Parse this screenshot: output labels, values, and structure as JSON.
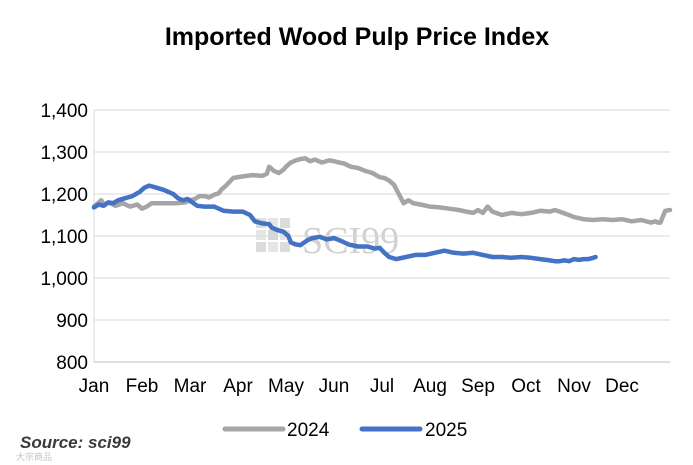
{
  "chart_data": {
    "type": "line",
    "title": "Imported Wood Pulp Price Index",
    "xlabel": "",
    "ylabel": "",
    "ylim": [
      800,
      1400
    ],
    "yticks": [
      "800",
      "900",
      "1,000",
      "1,100",
      "1,200",
      "1,300",
      "1,400"
    ],
    "ytick_values": [
      800,
      900,
      1000,
      1100,
      1200,
      1300,
      1400
    ],
    "xlim": [
      0,
      12
    ],
    "months": [
      "Jan",
      "Feb",
      "Mar",
      "Apr",
      "May",
      "Jun",
      "Jul",
      "Aug",
      "Sep",
      "Oct",
      "Nov",
      "Dec"
    ],
    "grid": true,
    "legend_position": "bottom",
    "source": "Source: sci99",
    "watermark": "SCI99",
    "series": [
      {
        "name": "2024",
        "color": "#a5a5a5",
        "x": [
          0,
          0.1,
          0.15,
          0.2,
          0.3,
          0.45,
          0.6,
          0.75,
          0.9,
          1.0,
          1.1,
          1.2,
          1.3,
          1.5,
          1.7,
          1.9,
          2.0,
          2.1,
          2.2,
          2.3,
          2.4,
          2.5,
          2.6,
          2.65,
          2.75,
          2.9,
          3.1,
          3.3,
          3.5,
          3.6,
          3.65,
          3.75,
          3.85,
          3.95,
          4.0,
          4.1,
          4.2,
          4.3,
          4.4,
          4.5,
          4.6,
          4.75,
          4.9,
          5.0,
          5.1,
          5.2,
          5.35,
          5.5,
          5.65,
          5.8,
          5.95,
          6.05,
          6.15,
          6.25,
          6.35,
          6.45,
          6.55,
          6.65,
          6.8,
          7.0,
          7.2,
          7.4,
          7.6,
          7.75,
          7.9,
          8.0,
          8.1,
          8.2,
          8.3,
          8.5,
          8.7,
          8.9,
          9.1,
          9.3,
          9.5,
          9.6,
          9.7,
          9.85,
          10.0,
          10.2,
          10.4,
          10.6,
          10.8,
          11.0,
          11.2,
          11.4,
          11.6,
          11.7,
          11.75,
          11.8,
          11.9,
          12.0
        ],
        "values": [
          1170,
          1180,
          1185,
          1175,
          1180,
          1172,
          1178,
          1170,
          1175,
          1165,
          1170,
          1178,
          1178,
          1178,
          1178,
          1180,
          1185,
          1188,
          1195,
          1195,
          1192,
          1198,
          1202,
          1210,
          1220,
          1238,
          1242,
          1245,
          1243,
          1248,
          1265,
          1255,
          1250,
          1258,
          1265,
          1275,
          1280,
          1283,
          1285,
          1278,
          1282,
          1275,
          1280,
          1278,
          1275,
          1273,
          1265,
          1262,
          1255,
          1250,
          1240,
          1238,
          1232,
          1222,
          1200,
          1178,
          1185,
          1178,
          1175,
          1170,
          1168,
          1165,
          1162,
          1158,
          1155,
          1162,
          1155,
          1170,
          1158,
          1150,
          1155,
          1152,
          1155,
          1160,
          1158,
          1162,
          1158,
          1152,
          1145,
          1140,
          1138,
          1140,
          1138,
          1140,
          1135,
          1138,
          1132,
          1135,
          1132,
          1132,
          1160,
          1162
        ]
      },
      {
        "name": "2025",
        "color": "#4472c4",
        "x": [
          0,
          0.1,
          0.2,
          0.3,
          0.4,
          0.5,
          0.65,
          0.8,
          0.95,
          1.05,
          1.15,
          1.3,
          1.45,
          1.55,
          1.65,
          1.75,
          1.85,
          1.95,
          2.05,
          2.15,
          2.3,
          2.5,
          2.7,
          2.9,
          3.1,
          3.25,
          3.35,
          3.5,
          3.65,
          3.7,
          3.8,
          3.95,
          4.05,
          4.1,
          4.2,
          4.3,
          4.45,
          4.55,
          4.7,
          4.85,
          5.0,
          5.15,
          5.3,
          5.5,
          5.7,
          5.85,
          5.95,
          6.05,
          6.15,
          6.3,
          6.5,
          6.7,
          6.9,
          7.1,
          7.3,
          7.5,
          7.7,
          7.9,
          8.1,
          8.3,
          8.5,
          8.7,
          8.9,
          9.1,
          9.3,
          9.5,
          9.6,
          9.7,
          9.8,
          9.9,
          10.0,
          10.1,
          10.2,
          10.3,
          10.4,
          10.45
        ],
        "values": [
          1168,
          1175,
          1172,
          1180,
          1178,
          1185,
          1190,
          1195,
          1205,
          1215,
          1220,
          1215,
          1210,
          1205,
          1200,
          1190,
          1185,
          1188,
          1180,
          1172,
          1170,
          1170,
          1160,
          1158,
          1158,
          1150,
          1135,
          1130,
          1128,
          1120,
          1115,
          1110,
          1100,
          1085,
          1080,
          1078,
          1090,
          1095,
          1098,
          1092,
          1095,
          1088,
          1080,
          1075,
          1075,
          1070,
          1072,
          1060,
          1050,
          1045,
          1050,
          1055,
          1055,
          1060,
          1065,
          1060,
          1058,
          1060,
          1055,
          1050,
          1050,
          1048,
          1050,
          1048,
          1045,
          1042,
          1040,
          1040,
          1042,
          1040,
          1045,
          1043,
          1045,
          1045,
          1048,
          1050
        ]
      }
    ]
  },
  "wm_small": "大宗商品"
}
